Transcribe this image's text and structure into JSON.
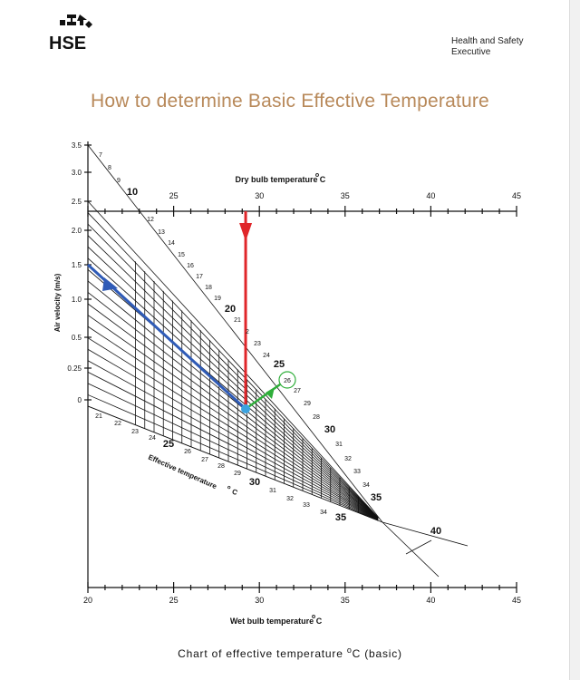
{
  "header": {
    "logo_text": "HSE",
    "org_line1": "Health and Safety",
    "org_line2": "Executive"
  },
  "title": "How to determine Basic Effective Temperature",
  "caption": {
    "prefix": "Chart of effective temperature ",
    "degree": "o",
    "suffix": "C (basic)"
  },
  "colors": {
    "title": "#b8895a",
    "red_arrow": "#e0262a",
    "blue_arrow": "#2f5bb7",
    "green_arrow": "#2fae3a",
    "marker": "#3ba3e0",
    "lines": "#111111"
  },
  "chart_data": {
    "type": "nomogram",
    "top_axis": {
      "label": "Dry bulb temperature ",
      "unit_degree": "o",
      "unit": "C",
      "range": [
        20,
        45
      ],
      "tick_labels": [
        "25",
        "30",
        "35",
        "40",
        "45"
      ]
    },
    "bottom_axis": {
      "label": "Wet bulb temperature ",
      "unit_degree": "o",
      "unit": "C",
      "range": [
        20,
        45
      ],
      "tick_labels": [
        "20",
        "25",
        "30",
        "35",
        "40",
        "45"
      ]
    },
    "left_axis": {
      "label": "Air velocity (m/s)",
      "values": [
        3.5,
        3.0,
        2.5,
        2.0,
        1.5,
        1.0,
        0.5,
        0.25,
        0
      ],
      "tick_labels": [
        "3.5",
        "3.0",
        "2.5",
        "2.0",
        "1.5",
        "1.0",
        "0.5",
        "0.25",
        "0"
      ]
    },
    "upper_scale_labels": [
      "7",
      "8",
      "9",
      "10",
      "12",
      "13",
      "14",
      "15",
      "16",
      "17",
      "18",
      "19",
      "20",
      "21",
      "2",
      "23",
      "24",
      "25",
      "27",
      "29",
      "28",
      "30",
      "31",
      "32",
      "33",
      "34",
      "35"
    ],
    "lower_scale_labels": [
      "21",
      "22",
      "23",
      "24",
      "25",
      "26",
      "27",
      "28",
      "29",
      "30",
      "31",
      "32",
      "33",
      "34",
      "35"
    ],
    "effective_temperature_label": "Effective temperature ",
    "effective_degree": "o",
    "effective_unit": "C",
    "right_labels": [
      "40"
    ],
    "worked_example": {
      "dry_bulb_c": 29.2,
      "wet_bulb_c": null,
      "air_velocity_ms": 1.5,
      "result_effective_temperature": "26"
    }
  }
}
